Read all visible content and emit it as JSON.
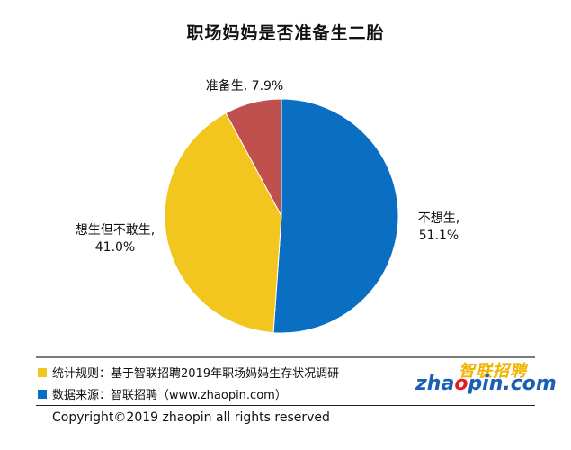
{
  "chart_data": {
    "type": "pie",
    "title": "职场妈妈是否准备生二胎",
    "slices": [
      {
        "label": "不想生,",
        "value_label": "51.1%",
        "value": 51.1,
        "color": "#0a6fc2"
      },
      {
        "label": "想生但不敢生,",
        "value_label": "41.0%",
        "value": 41.0,
        "color": "#f2c51f"
      },
      {
        "label": "准备生, 7.9%",
        "value_label": "",
        "value": 7.9,
        "color": "#c0504d"
      }
    ]
  },
  "footer": {
    "note1": "统计规则：基于智联招聘2019年职场妈妈生存状况调研",
    "note1_color": "#f2c51f",
    "note2": "数据来源：智联招聘（www.zhaopin.com）",
    "note2_color": "#0a6fc2",
    "copyright": "Copyright©2019 zhaopin all rights reserved"
  },
  "logo": {
    "chinese": "智联招聘",
    "english_prefix": "zha",
    "english_o": "o",
    "english_suffix": "pin.com"
  }
}
